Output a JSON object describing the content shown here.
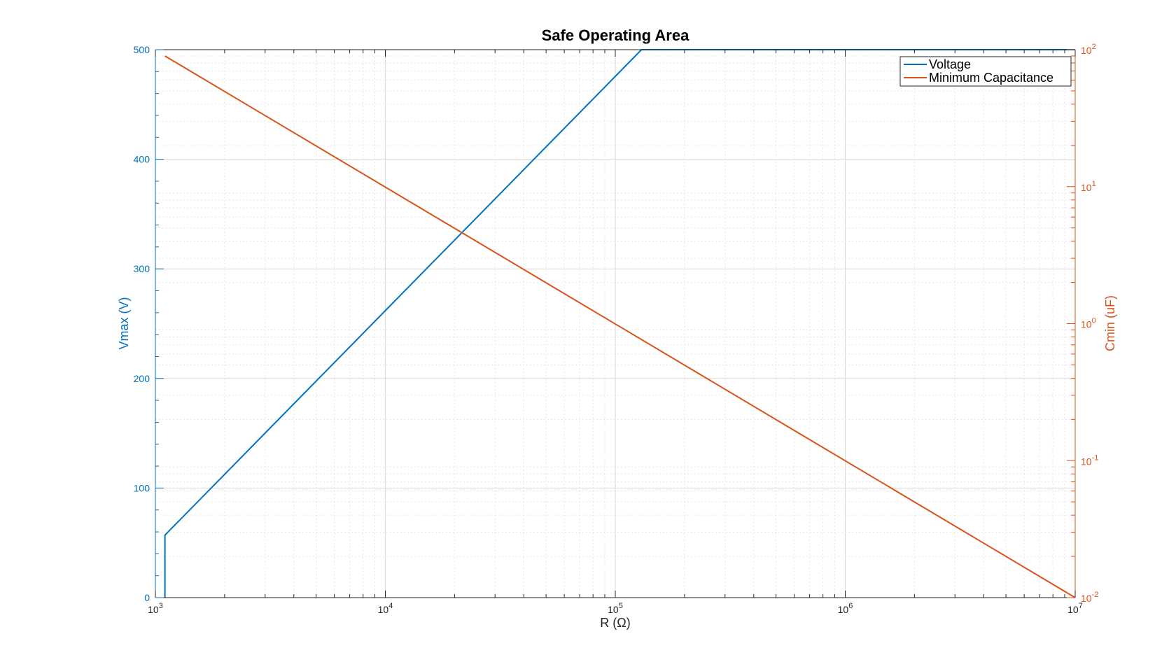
{
  "chart_data": {
    "type": "line",
    "title": "Safe Operating Area",
    "xlabel": "R (Ω)",
    "ylabel_left": "Vmax (V)",
    "ylabel_right": "Cmin (uF)",
    "x_scale": "log",
    "xlim": [
      1000,
      10000000
    ],
    "x_ticks": [
      {
        "value": 1000,
        "base": "10",
        "exp": "3"
      },
      {
        "value": 10000,
        "base": "10",
        "exp": "4"
      },
      {
        "value": 100000,
        "base": "10",
        "exp": "5"
      },
      {
        "value": 1000000,
        "base": "10",
        "exp": "6"
      },
      {
        "value": 10000000,
        "base": "10",
        "exp": "7"
      }
    ],
    "y_left": {
      "scale": "linear",
      "lim": [
        0,
        500
      ],
      "ticks": [
        {
          "value": 0,
          "label": "0"
        },
        {
          "value": 100,
          "label": "100"
        },
        {
          "value": 200,
          "label": "200"
        },
        {
          "value": 300,
          "label": "300"
        },
        {
          "value": 400,
          "label": "400"
        },
        {
          "value": 500,
          "label": "500"
        }
      ]
    },
    "y_right": {
      "scale": "log",
      "lim": [
        0.01,
        100
      ],
      "ticks": [
        {
          "value": 0.01,
          "base": "10",
          "exp": "-2"
        },
        {
          "value": 0.1,
          "base": "10",
          "exp": "-1"
        },
        {
          "value": 1,
          "base": "10",
          "exp": "0"
        },
        {
          "value": 10,
          "base": "10",
          "exp": "1"
        },
        {
          "value": 100,
          "base": "10",
          "exp": "2"
        }
      ]
    },
    "grid": true,
    "minor_grid": true,
    "legend_position": "top-right",
    "series": [
      {
        "name": "Voltage",
        "axis": "left",
        "color": "#0072BD",
        "points": [
          {
            "x": 1100,
            "y": 0
          },
          {
            "x": 1100,
            "y": 57
          },
          {
            "x": 130000,
            "y": 500
          },
          {
            "x": 10000000,
            "y": 500
          }
        ]
      },
      {
        "name": "Minimum Capacitance",
        "axis": "right",
        "color": "#D95319",
        "points": [
          {
            "x": 1100,
            "y": 90
          },
          {
            "x": 10000000,
            "y": 0.01
          }
        ]
      }
    ],
    "colors": {
      "left_axis": "#0072BD",
      "right_axis": "#D95319",
      "x_axis": "#262626",
      "major_grid": "#d9d9d9",
      "minor_grid": "#e6e6e6"
    }
  }
}
